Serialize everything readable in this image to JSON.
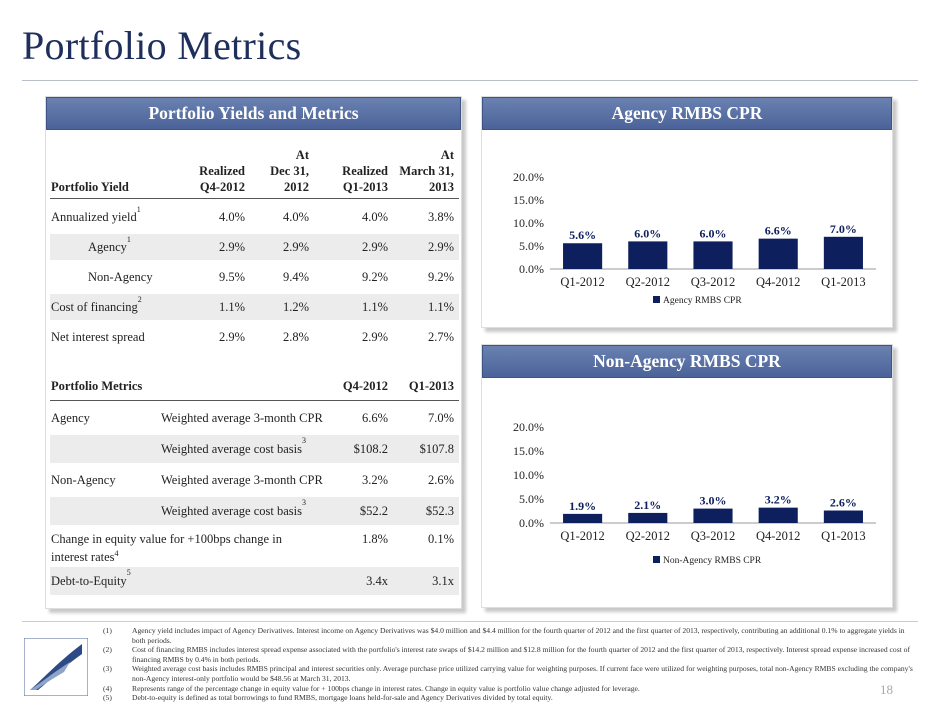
{
  "page": {
    "title": "Portfolio Metrics",
    "page_number": "18"
  },
  "left_panel": {
    "header": "Portfolio Yields and Metrics",
    "yield_table": {
      "label_header": "Portfolio Yield",
      "columns": [
        {
          "line1": "",
          "line2": "Realized",
          "line3": "Q4-2012"
        },
        {
          "line1": "At",
          "line2": "Dec 31,",
          "line3": "2012"
        },
        {
          "line1": "",
          "line2": "Realized",
          "line3": "Q1-2013"
        },
        {
          "line1": "At",
          "line2": "March 31,",
          "line3": "2013"
        }
      ],
      "rows": [
        {
          "label": "Annualized yield",
          "sup": "1",
          "values": [
            "4.0%",
            "4.0%",
            "4.0%",
            "3.8%"
          ]
        },
        {
          "label": "Agency",
          "sup": "1",
          "values": [
            "2.9%",
            "2.9%",
            "2.9%",
            "2.9%"
          ]
        },
        {
          "label": "Non-Agency",
          "sup": "",
          "values": [
            "9.5%",
            "9.4%",
            "9.2%",
            "9.2%"
          ]
        },
        {
          "label": "Cost of financing",
          "sup": "2",
          "values": [
            "1.1%",
            "1.2%",
            "1.1%",
            "1.1%"
          ]
        },
        {
          "label": "Net interest spread",
          "sup": "",
          "values": [
            "2.9%",
            "2.8%",
            "2.9%",
            "2.7%"
          ]
        }
      ]
    },
    "metrics_table": {
      "label_header": "Portfolio Metrics",
      "columns": [
        "Q4-2012",
        "Q1-2013"
      ],
      "rows": [
        {
          "group": "Agency",
          "metric": "Weighted average 3-month CPR",
          "sup": "",
          "values": [
            "6.6%",
            "7.0%"
          ]
        },
        {
          "group": "",
          "metric": "Weighted average cost basis",
          "sup": "3",
          "values": [
            "$108.2",
            "$107.8"
          ]
        },
        {
          "group": "Non-Agency",
          "metric": "Weighted average 3-month CPR",
          "sup": "",
          "values": [
            "3.2%",
            "2.6%"
          ]
        },
        {
          "group": "",
          "metric": "Weighted average cost basis",
          "sup": "3",
          "values": [
            "$52.2",
            "$52.3"
          ]
        },
        {
          "group": "Change in equity value for +100bps change in",
          "group_line2": "interest rates",
          "sup": "4",
          "values": [
            "1.8%",
            "0.1%"
          ]
        },
        {
          "group": "Debt-to-Equity",
          "sup": "5",
          "values": [
            "3.4x",
            "3.1x"
          ]
        }
      ]
    }
  },
  "agency_panel": {
    "header": "Agency RMBS CPR"
  },
  "non_agency_panel": {
    "header": "Non-Agency RMBS CPR"
  },
  "chart_data": [
    {
      "type": "bar",
      "title": "Agency RMBS CPR",
      "categories": [
        "Q1-2012",
        "Q2-2012",
        "Q3-2012",
        "Q4-2012",
        "Q1-2013"
      ],
      "series": [
        {
          "name": "Agency RMBS CPR",
          "values": [
            5.6,
            6.0,
            6.0,
            6.6,
            7.0
          ],
          "labels": [
            "5.6%",
            "6.0%",
            "6.0%",
            "6.6%",
            "7.0%"
          ]
        }
      ],
      "ylim": [
        0,
        20
      ],
      "yticks": [
        "0.0%",
        "5.0%",
        "10.0%",
        "15.0%",
        "20.0%"
      ],
      "legend": "bottom",
      "color": "#0d1f5c"
    },
    {
      "type": "bar",
      "title": "Non-Agency RMBS CPR",
      "categories": [
        "Q1-2012",
        "Q2-2012",
        "Q3-2012",
        "Q4-2012",
        "Q1-2013"
      ],
      "series": [
        {
          "name": "Non-Agency RMBS CPR",
          "values": [
            1.9,
            2.1,
            3.0,
            3.2,
            2.6
          ],
          "labels": [
            "1.9%",
            "2.1%",
            "3.0%",
            "3.2%",
            "2.6%"
          ]
        }
      ],
      "ylim": [
        0,
        20
      ],
      "yticks": [
        "0.0%",
        "5.0%",
        "10.0%",
        "15.0%",
        "20.0%"
      ],
      "legend": "bottom",
      "color": "#0d1f5c"
    }
  ],
  "footnotes": [
    {
      "num": "(1)",
      "text": "Agency yield includes impact of Agency Derivatives. Interest income on Agency Derivatives was $4.0 million and $4.4 million for the fourth quarter of 2012 and the first quarter of 2013, respectively, contributing an additional 0.1% to aggregate yields in both periods."
    },
    {
      "num": "(2)",
      "text": "Cost of financing RMBS includes interest spread expense associated with the portfolio's interest rate swaps of $14.2 million and $12.8 million for the fourth quarter of 2012 and the first quarter of 2013, respectively. Interest spread expense increased cost of financing RMBS by 0.4% in both periods."
    },
    {
      "num": "(3)",
      "text": "Weighted average cost basis includes RMBS principal and interest securities only. Average purchase price utilized carrying value for weighting purposes. If current face were utilized for weighting purposes, total non-Agency RMBS excluding the company's non-Agency interest-only portfolio would be $48.56 at March 31, 2013."
    },
    {
      "num": "(4)",
      "text": "Represents range of the percentage change in equity value for + 100bps change in interest rates. Change in equity value is portfolio value change adjusted for leverage."
    },
    {
      "num": "(5)",
      "text": "Debt-to-equity is defined as total borrowings to fund RMBS, mortgage loans held-for-sale and Agency Derivatives divided by total equity."
    }
  ]
}
